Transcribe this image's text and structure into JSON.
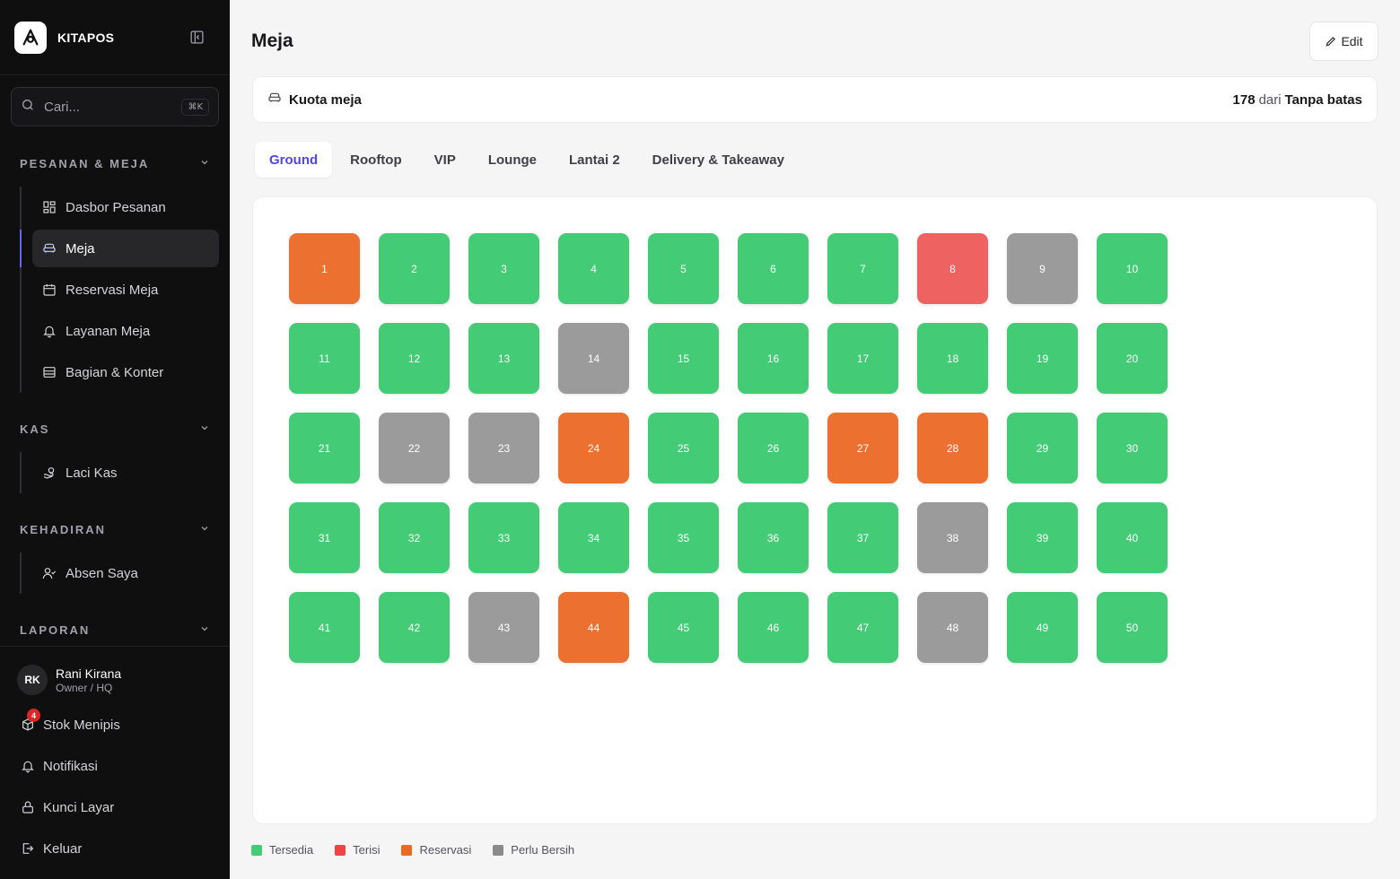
{
  "brand": {
    "name": "KITAPOS"
  },
  "search": {
    "placeholder": "Cari...",
    "shortcut": "⌘K"
  },
  "sidebar": {
    "sections": [
      {
        "title": "PESANAN & MEJA",
        "items": [
          {
            "label": "Dasbor Pesanan",
            "icon": "dashboard-icon"
          },
          {
            "label": "Meja",
            "icon": "sofa-icon",
            "active": true
          },
          {
            "label": "Reservasi Meja",
            "icon": "calendar-icon"
          },
          {
            "label": "Layanan Meja",
            "icon": "bell-icon"
          },
          {
            "label": "Bagian & Konter",
            "icon": "table-sections-icon"
          }
        ]
      },
      {
        "title": "KAS",
        "items": [
          {
            "label": "Laci Kas",
            "icon": "cash-hand-icon"
          }
        ]
      },
      {
        "title": "KEHADIRAN",
        "items": [
          {
            "label": "Absen Saya",
            "icon": "user-check-icon"
          }
        ]
      },
      {
        "title": "LAPORAN",
        "items": []
      }
    ]
  },
  "user": {
    "initials": "RK",
    "name": "Rani Kirana",
    "role": "Owner / HQ"
  },
  "footer": {
    "stock": {
      "label": "Stok Menipis",
      "badge": "4"
    },
    "notif": {
      "label": "Notifikasi"
    },
    "lock": {
      "label": "Kunci Layar"
    },
    "logout": {
      "label": "Keluar"
    }
  },
  "page": {
    "title": "Meja",
    "edit_label": "Edit"
  },
  "quota": {
    "label": "Kuota meja",
    "count": "178",
    "of": "dari",
    "limit": "Tanpa batas"
  },
  "tabs": [
    "Ground",
    "Rooftop",
    "VIP",
    "Lounge",
    "Lantai 2",
    "Delivery & Takeaway"
  ],
  "active_tab": "Ground",
  "status_colors": {
    "available": "#43cc75",
    "occupied": "#ef6262",
    "reserved": "#ec7030",
    "cleaning": "#9b9b9b"
  },
  "tables": [
    {
      "n": "1",
      "s": "reserved"
    },
    {
      "n": "2",
      "s": "available"
    },
    {
      "n": "3",
      "s": "available"
    },
    {
      "n": "4",
      "s": "available"
    },
    {
      "n": "5",
      "s": "available"
    },
    {
      "n": "6",
      "s": "available"
    },
    {
      "n": "7",
      "s": "available"
    },
    {
      "n": "8",
      "s": "occupied"
    },
    {
      "n": "9",
      "s": "cleaning"
    },
    {
      "n": "10",
      "s": "available"
    },
    {
      "n": "11",
      "s": "available"
    },
    {
      "n": "12",
      "s": "available"
    },
    {
      "n": "13",
      "s": "available"
    },
    {
      "n": "14",
      "s": "cleaning"
    },
    {
      "n": "15",
      "s": "available"
    },
    {
      "n": "16",
      "s": "available"
    },
    {
      "n": "17",
      "s": "available"
    },
    {
      "n": "18",
      "s": "available"
    },
    {
      "n": "19",
      "s": "available"
    },
    {
      "n": "20",
      "s": "available"
    },
    {
      "n": "21",
      "s": "available"
    },
    {
      "n": "22",
      "s": "cleaning"
    },
    {
      "n": "23",
      "s": "cleaning"
    },
    {
      "n": "24",
      "s": "reserved"
    },
    {
      "n": "25",
      "s": "available"
    },
    {
      "n": "26",
      "s": "available"
    },
    {
      "n": "27",
      "s": "reserved"
    },
    {
      "n": "28",
      "s": "reserved"
    },
    {
      "n": "29",
      "s": "available"
    },
    {
      "n": "30",
      "s": "available"
    },
    {
      "n": "31",
      "s": "available"
    },
    {
      "n": "32",
      "s": "available"
    },
    {
      "n": "33",
      "s": "available"
    },
    {
      "n": "34",
      "s": "available"
    },
    {
      "n": "35",
      "s": "available"
    },
    {
      "n": "36",
      "s": "available"
    },
    {
      "n": "37",
      "s": "available"
    },
    {
      "n": "38",
      "s": "cleaning"
    },
    {
      "n": "39",
      "s": "available"
    },
    {
      "n": "40",
      "s": "available"
    },
    {
      "n": "41",
      "s": "available"
    },
    {
      "n": "42",
      "s": "available"
    },
    {
      "n": "43",
      "s": "cleaning"
    },
    {
      "n": "44",
      "s": "reserved"
    },
    {
      "n": "45",
      "s": "available"
    },
    {
      "n": "46",
      "s": "available"
    },
    {
      "n": "47",
      "s": "available"
    },
    {
      "n": "48",
      "s": "cleaning"
    },
    {
      "n": "49",
      "s": "available"
    },
    {
      "n": "50",
      "s": "available"
    }
  ],
  "legend": [
    {
      "label": "Tersedia",
      "color": "#43cc75"
    },
    {
      "label": "Terisi",
      "color": "#ef4444"
    },
    {
      "label": "Reservasi",
      "color": "#ea6a24"
    },
    {
      "label": "Perlu Bersih",
      "color": "#8a8a8a"
    }
  ]
}
